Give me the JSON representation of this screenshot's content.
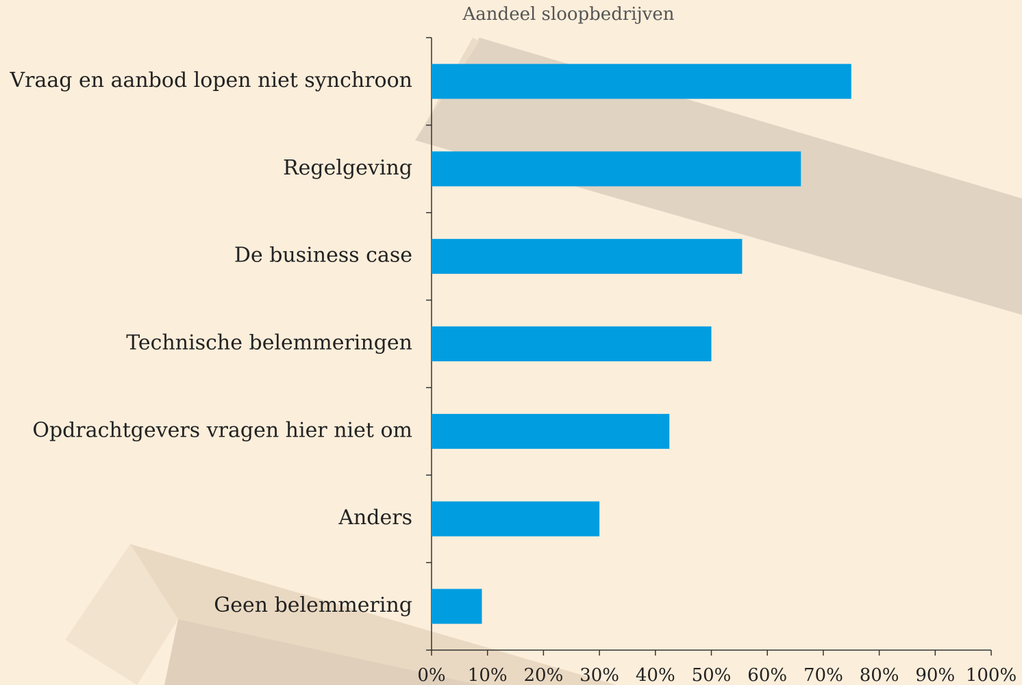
{
  "chart_data": {
    "type": "bar",
    "orientation": "horizontal",
    "title": "Aandeel sloopbedrijven",
    "categories": [
      "Vraag en aanbod lopen niet synchroon",
      "Regelgeving",
      "De business case",
      "Technische belemmeringen",
      "Opdrachtgevers vragen hier niet om",
      "Anders",
      "Geen belemmering"
    ],
    "values": [
      75,
      66,
      55.5,
      50,
      42.5,
      30,
      9
    ],
    "color": "#009de0",
    "xlim": [
      0,
      100
    ],
    "xticks": [
      {
        "value": 0,
        "label": "0%"
      },
      {
        "value": 10,
        "label": "10%"
      },
      {
        "value": 20,
        "label": "20%"
      },
      {
        "value": 30,
        "label": "30%"
      },
      {
        "value": 40,
        "label": "40%"
      },
      {
        "value": 50,
        "label": "50%"
      },
      {
        "value": 60,
        "label": "60%"
      },
      {
        "value": 70,
        "label": "70%"
      },
      {
        "value": 80,
        "label": "80%"
      },
      {
        "value": 90,
        "label": "90%"
      },
      {
        "value": 100,
        "label": "100%"
      }
    ],
    "grid": false
  }
}
